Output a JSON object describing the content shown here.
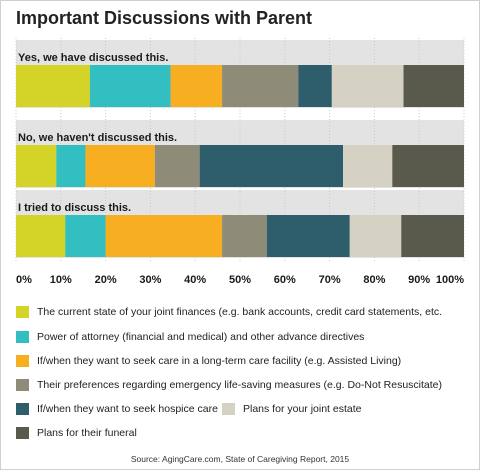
{
  "title": "Important Discussions with Parent",
  "source": "Source: AgingCare.com, State of Caregiving Report, 2015",
  "colors": {
    "band": "#e3e3e3",
    "categories": [
      "#d4d328",
      "#33bfc2",
      "#f7ae21",
      "#8e8b79",
      "#2e5d6b",
      "#d5d2c4",
      "#5a5a4c"
    ]
  },
  "legend": [
    "The current state of your joint finances (e.g. bank accounts, credit card statements, etc.",
    "Power of attorney (financial and medical) and other advance directives",
    "If/when they want to seek care in a long-term care facility (e.g. Assisted Living)",
    "Their preferences regarding emergency life-saving measures (e.g. Do-Not Resuscitate)",
    "If/when they want to seek hospice care",
    "Plans for your joint estate",
    "Plans for their funeral"
  ],
  "chart_data": {
    "type": "bar",
    "orientation": "horizontal-stacked-100",
    "title": "Important Discussions with Parent",
    "categories": [
      "Yes, we have discussed this.",
      "No, we haven't discussed this.",
      "I tried to discuss this."
    ],
    "series": [
      {
        "name": "The current state of your joint finances (e.g. bank accounts, credit card statements, etc.",
        "values": [
          16.5,
          9,
          11
        ]
      },
      {
        "name": "Power of attorney (financial and medical) and other advance directives",
        "values": [
          18,
          6.5,
          9
        ]
      },
      {
        "name": "If/when they want to seek care in a long-term care facility (e.g. Assisted Living)",
        "values": [
          11.5,
          15.5,
          26
        ]
      },
      {
        "name": "Their preferences regarding emergency life-saving measures (e.g. Do-Not Resuscitate)",
        "values": [
          17,
          10,
          10
        ]
      },
      {
        "name": "If/when they want to seek hospice care",
        "values": [
          7.5,
          32,
          18.5
        ]
      },
      {
        "name": "Plans for your joint estate",
        "values": [
          16,
          11,
          11.5
        ]
      },
      {
        "name": "Plans for their funeral",
        "values": [
          13.5,
          16,
          14
        ]
      }
    ],
    "xlim": [
      0,
      100
    ],
    "xticks": [
      "0%",
      "10%",
      "20%",
      "30%",
      "40%",
      "50%",
      "60%",
      "70%",
      "80%",
      "90%",
      "100%"
    ],
    "grid": true,
    "legend_position": "bottom"
  }
}
